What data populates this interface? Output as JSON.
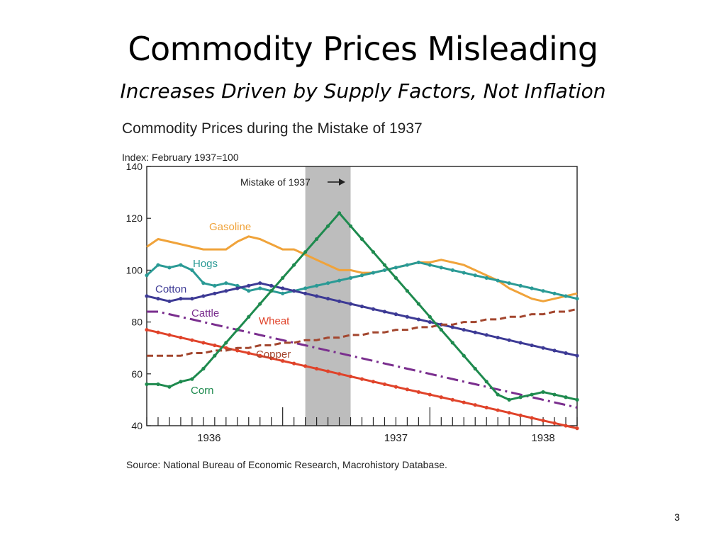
{
  "slide": {
    "title": "Commodity Prices Misleading",
    "subtitle": "Increases Driven by Supply Factors, Not Inflation",
    "page_number": "3"
  },
  "chart_data": {
    "type": "line",
    "title": "Commodity Prices during the Mistake of 1937",
    "ylabel": "Index: February 1937=100",
    "source": "Source: National Bureau of Economic Research, Macrohistory Database.",
    "annotation": "Mistake of 1937",
    "shaded_range": [
      14,
      18
    ],
    "ylim": [
      40,
      140
    ],
    "yticks": [
      40,
      60,
      80,
      100,
      120,
      140
    ],
    "year_ticks": [
      {
        "label": "1936",
        "x": 5.5
      },
      {
        "label": "1937",
        "x": 22
      },
      {
        "label": "1938",
        "x": 35
      }
    ],
    "x": [
      0,
      1,
      2,
      3,
      4,
      5,
      6,
      7,
      8,
      9,
      10,
      11,
      12,
      13,
      14,
      15,
      16,
      17,
      18,
      19,
      20,
      21,
      22,
      23,
      24,
      25,
      26,
      27,
      28,
      29,
      30,
      31,
      32,
      33,
      34,
      35,
      36,
      37,
      38
    ],
    "series": [
      {
        "name": "Gasoline",
        "color": "#f0a33a",
        "style": "solid",
        "values": [
          109,
          112,
          111,
          110,
          109,
          108,
          108,
          108,
          111,
          113,
          112,
          110,
          108,
          108,
          106,
          104,
          102,
          100,
          100,
          99,
          99,
          100,
          101,
          102,
          103,
          103,
          104,
          103,
          102,
          100,
          98,
          96,
          93,
          91,
          89,
          88,
          89,
          90,
          91
        ]
      },
      {
        "name": "Hogs",
        "color": "#2a9a95",
        "style": "solid",
        "values": [
          98,
          102,
          101,
          102,
          100,
          95,
          94,
          95,
          94,
          92,
          93,
          92,
          91,
          92,
          93,
          94,
          95,
          96,
          97,
          98,
          99,
          100,
          101,
          102,
          103,
          102,
          101,
          100,
          99,
          98,
          97,
          96,
          95,
          94,
          93,
          92,
          91,
          90,
          89
        ]
      },
      {
        "name": "Cotton",
        "color": "#3d3a95",
        "style": "solid",
        "values": [
          90,
          89,
          88,
          89,
          89,
          90,
          91,
          92,
          93,
          94,
          95,
          94,
          93,
          92,
          91,
          90,
          89,
          88,
          87,
          86,
          85,
          84,
          83,
          82,
          81,
          80,
          79,
          78,
          77,
          76,
          75,
          74,
          73,
          72,
          71,
          70,
          69,
          68,
          67
        ]
      },
      {
        "name": "Cattle",
        "color": "#7a2e8e",
        "style": "dashdot",
        "values": [
          84,
          84,
          83,
          82,
          81,
          80,
          79,
          78,
          77,
          76,
          75,
          74,
          73,
          72,
          71,
          70,
          69,
          68,
          67,
          66,
          65,
          64,
          63,
          62,
          61,
          60,
          59,
          58,
          57,
          56,
          55,
          54,
          53,
          52,
          51,
          50,
          49,
          48,
          47
        ]
      },
      {
        "name": "Wheat",
        "color": "#e0432a",
        "style": "solid",
        "values": [
          77,
          76,
          75,
          74,
          73,
          72,
          71,
          70,
          69,
          68,
          67,
          66,
          65,
          64,
          63,
          62,
          61,
          60,
          59,
          58,
          57,
          56,
          55,
          54,
          53,
          52,
          51,
          50,
          49,
          48,
          47,
          46,
          45,
          44,
          43,
          42,
          41,
          40,
          39
        ]
      },
      {
        "name": "Copper",
        "color": "#a3462e",
        "style": "dashed",
        "values": [
          67,
          67,
          67,
          67,
          68,
          68,
          69,
          69,
          70,
          70,
          71,
          71,
          72,
          72,
          73,
          73,
          74,
          74,
          75,
          75,
          76,
          76,
          77,
          77,
          78,
          78,
          79,
          79,
          80,
          80,
          81,
          81,
          82,
          82,
          83,
          83,
          84,
          84,
          85
        ]
      },
      {
        "name": "Corn",
        "color": "#1e8a4e",
        "style": "solid",
        "values": [
          56,
          56,
          55,
          57,
          58,
          62,
          67,
          72,
          77,
          82,
          87,
          92,
          97,
          102,
          107,
          112,
          117,
          122,
          117,
          112,
          107,
          102,
          97,
          92,
          87,
          82,
          77,
          72,
          67,
          62,
          57,
          52,
          50,
          51,
          52,
          53,
          52,
          51,
          50
        ]
      }
    ]
  }
}
